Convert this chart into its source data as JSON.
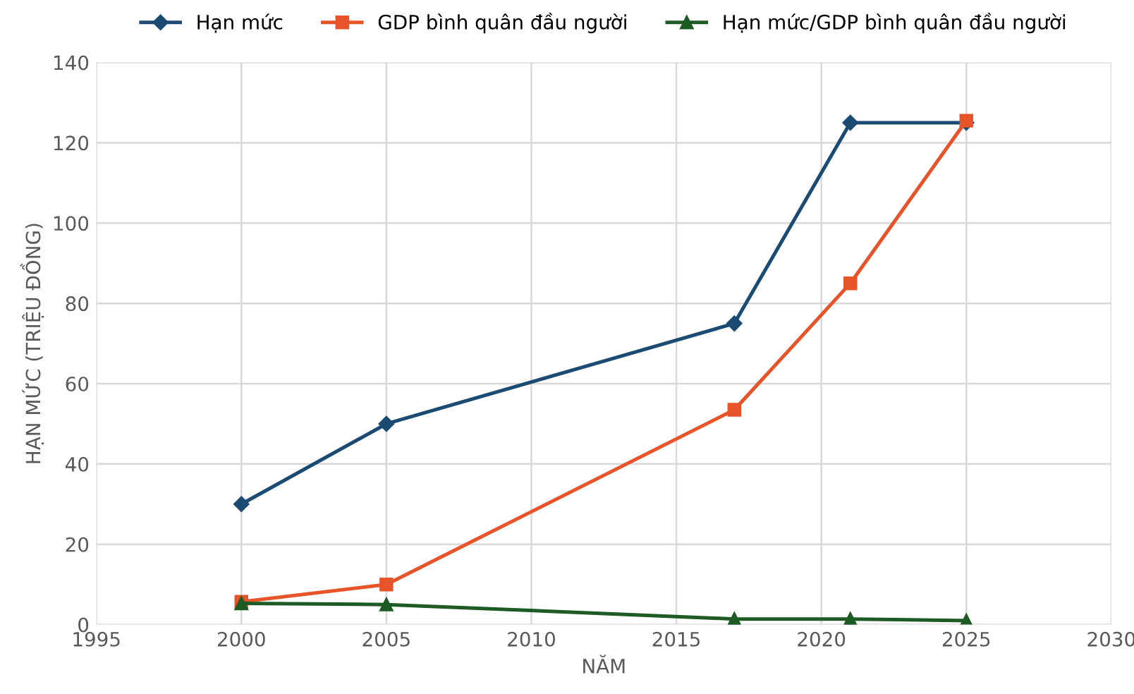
{
  "chart_data": {
    "type": "line",
    "xlabel": "NĂM",
    "ylabel": "HẠN MỨC (TRIỆU ĐỒNG)",
    "x": [
      2000,
      2005,
      2017,
      2021,
      2025
    ],
    "series": [
      {
        "name": "Hạn mức",
        "color": "#1b4a72",
        "values": [
          30,
          50,
          75,
          125,
          125
        ],
        "marker": "diamond"
      },
      {
        "name": "GDP bình quân đầu người",
        "color": "#e8542a",
        "values": [
          5.7,
          10,
          53.5,
          85,
          125.5
        ],
        "marker": "square"
      },
      {
        "name": "Hạn mức/GDP bình quân đầu người",
        "color": "#1e5a24",
        "values": [
          5.3,
          5,
          1.4,
          1.4,
          1
        ],
        "marker": "triangle"
      }
    ],
    "xlim": [
      1995,
      2030
    ],
    "xticks": [
      1995,
      2000,
      2005,
      2010,
      2015,
      2020,
      2025,
      2030
    ],
    "ylim": [
      0,
      140
    ],
    "yticks": [
      0,
      20,
      40,
      60,
      80,
      100,
      120,
      140
    ],
    "grid": true,
    "legend": "top",
    "line_style": "solid"
  }
}
